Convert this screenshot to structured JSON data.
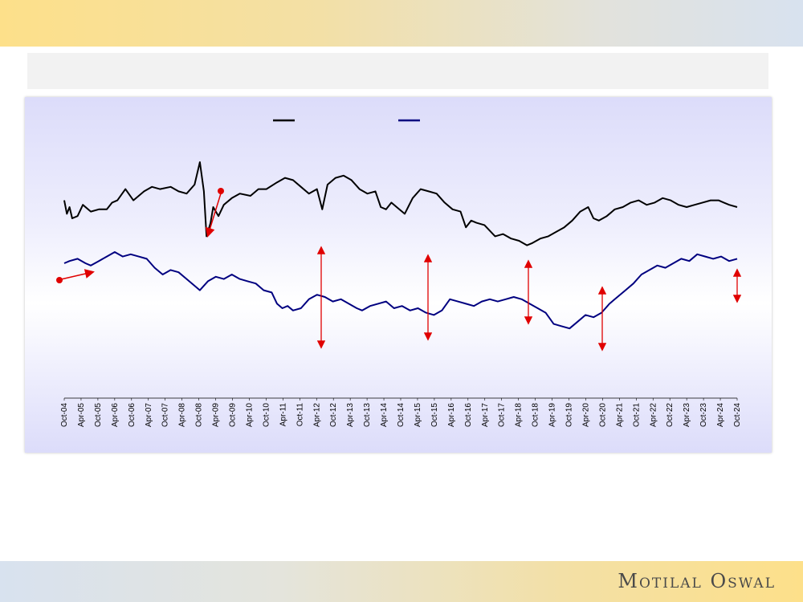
{
  "logo": {
    "text": "Motilal Oswal"
  },
  "colors": {
    "series_top": "#000000",
    "series_bottom": "#000080",
    "annotation": "#e00000"
  },
  "chart_data": {
    "type": "line",
    "x_ticks": [
      "Oct-04",
      "Apr-05",
      "Oct-05",
      "Apr-06",
      "Oct-06",
      "Apr-07",
      "Oct-07",
      "Apr-08",
      "Oct-08",
      "Apr-09",
      "Oct-09",
      "Apr-10",
      "Oct-10",
      "Apr-11",
      "Oct-11",
      "Apr-12",
      "Oct-12",
      "Apr-13",
      "Oct-13",
      "Apr-14",
      "Oct-14",
      "Apr-15",
      "Oct-15",
      "Apr-16",
      "Oct-16",
      "Apr-17",
      "Oct-17",
      "Apr-18",
      "Oct-18",
      "Apr-19",
      "Oct-19",
      "Apr-20",
      "Oct-20",
      "Apr-21",
      "Oct-21",
      "Apr-22",
      "Oct-22",
      "Apr-23",
      "Oct-23",
      "Apr-24",
      "Oct-24"
    ],
    "y_scale": {
      "min": 0,
      "max": 100,
      "note": "relative scale, axis not printed"
    },
    "series": [
      {
        "color": "#000000",
        "points": [
          [
            0,
            88
          ],
          [
            0.1,
            82
          ],
          [
            0.2,
            85
          ],
          [
            0.3,
            80
          ],
          [
            0.5,
            81
          ],
          [
            0.7,
            86
          ],
          [
            1.0,
            83
          ],
          [
            1.3,
            84
          ],
          [
            1.6,
            84
          ],
          [
            1.8,
            87
          ],
          [
            2.0,
            88
          ],
          [
            2.3,
            93
          ],
          [
            2.6,
            88
          ],
          [
            3.0,
            92
          ],
          [
            3.3,
            94
          ],
          [
            3.6,
            93
          ],
          [
            4.0,
            94
          ],
          [
            4.3,
            92
          ],
          [
            4.6,
            91
          ],
          [
            4.9,
            95
          ],
          [
            5.1,
            105
          ],
          [
            5.25,
            92
          ],
          [
            5.35,
            72
          ],
          [
            5.5,
            78
          ],
          [
            5.6,
            85
          ],
          [
            5.8,
            81
          ],
          [
            6.0,
            86
          ],
          [
            6.3,
            89
          ],
          [
            6.6,
            91
          ],
          [
            7.0,
            90
          ],
          [
            7.3,
            93
          ],
          [
            7.6,
            93
          ],
          [
            8.0,
            96
          ],
          [
            8.3,
            98
          ],
          [
            8.6,
            97
          ],
          [
            8.9,
            94
          ],
          [
            9.2,
            91
          ],
          [
            9.5,
            93
          ],
          [
            9.7,
            84
          ],
          [
            9.9,
            95
          ],
          [
            10.2,
            98
          ],
          [
            10.5,
            99
          ],
          [
            10.8,
            97
          ],
          [
            11.1,
            93
          ],
          [
            11.4,
            91
          ],
          [
            11.7,
            92
          ],
          [
            11.9,
            85
          ],
          [
            12.1,
            84
          ],
          [
            12.3,
            87
          ],
          [
            12.5,
            85
          ],
          [
            12.8,
            82
          ],
          [
            13.1,
            89
          ],
          [
            13.4,
            93
          ],
          [
            13.7,
            92
          ],
          [
            14.0,
            91
          ],
          [
            14.3,
            87
          ],
          [
            14.6,
            84
          ],
          [
            14.9,
            83
          ],
          [
            15.1,
            76
          ],
          [
            15.3,
            79
          ],
          [
            15.5,
            78
          ],
          [
            15.8,
            77
          ],
          [
            16.2,
            72
          ],
          [
            16.5,
            73
          ],
          [
            16.8,
            71
          ],
          [
            17.1,
            70
          ],
          [
            17.4,
            68
          ],
          [
            17.6,
            69
          ],
          [
            17.9,
            71
          ],
          [
            18.2,
            72
          ],
          [
            18.5,
            74
          ],
          [
            18.8,
            76
          ],
          [
            19.1,
            79
          ],
          [
            19.4,
            83
          ],
          [
            19.7,
            85
          ],
          [
            19.9,
            80
          ],
          [
            20.1,
            79
          ],
          [
            20.4,
            81
          ],
          [
            20.7,
            84
          ],
          [
            21.0,
            85
          ],
          [
            21.3,
            87
          ],
          [
            21.6,
            88
          ],
          [
            21.9,
            86
          ],
          [
            22.2,
            87
          ],
          [
            22.5,
            89
          ],
          [
            22.8,
            88
          ],
          [
            23.1,
            86
          ],
          [
            23.4,
            85
          ],
          [
            23.7,
            86
          ],
          [
            24.0,
            87
          ],
          [
            24.3,
            88
          ],
          [
            24.6,
            88
          ],
          [
            24.8,
            87
          ],
          [
            25.0,
            86
          ],
          [
            25.3,
            85
          ]
        ]
      },
      {
        "color": "#000080",
        "points": [
          [
            0,
            60
          ],
          [
            0.2,
            61
          ],
          [
            0.5,
            62
          ],
          [
            0.8,
            60
          ],
          [
            1.0,
            59
          ],
          [
            1.3,
            61
          ],
          [
            1.6,
            63
          ],
          [
            1.9,
            65
          ],
          [
            2.2,
            63
          ],
          [
            2.5,
            64
          ],
          [
            2.8,
            63
          ],
          [
            3.1,
            62
          ],
          [
            3.4,
            58
          ],
          [
            3.7,
            55
          ],
          [
            4.0,
            57
          ],
          [
            4.3,
            56
          ],
          [
            4.6,
            53
          ],
          [
            4.9,
            50
          ],
          [
            5.1,
            48
          ],
          [
            5.4,
            52
          ],
          [
            5.7,
            54
          ],
          [
            6.0,
            53
          ],
          [
            6.3,
            55
          ],
          [
            6.6,
            53
          ],
          [
            6.9,
            52
          ],
          [
            7.2,
            51
          ],
          [
            7.5,
            48
          ],
          [
            7.8,
            47
          ],
          [
            8.0,
            42
          ],
          [
            8.2,
            40
          ],
          [
            8.4,
            41
          ],
          [
            8.6,
            39
          ],
          [
            8.9,
            40
          ],
          [
            9.2,
            44
          ],
          [
            9.5,
            46
          ],
          [
            9.8,
            45
          ],
          [
            10.1,
            43
          ],
          [
            10.4,
            44
          ],
          [
            10.7,
            42
          ],
          [
            11.0,
            40
          ],
          [
            11.2,
            39
          ],
          [
            11.5,
            41
          ],
          [
            11.8,
            42
          ],
          [
            12.1,
            43
          ],
          [
            12.4,
            40
          ],
          [
            12.7,
            41
          ],
          [
            13.0,
            39
          ],
          [
            13.3,
            40
          ],
          [
            13.6,
            38
          ],
          [
            13.9,
            37
          ],
          [
            14.2,
            39
          ],
          [
            14.5,
            44
          ],
          [
            14.8,
            43
          ],
          [
            15.1,
            42
          ],
          [
            15.4,
            41
          ],
          [
            15.7,
            43
          ],
          [
            16.0,
            44
          ],
          [
            16.3,
            43
          ],
          [
            16.6,
            44
          ],
          [
            16.9,
            45
          ],
          [
            17.2,
            44
          ],
          [
            17.5,
            42
          ],
          [
            17.8,
            40
          ],
          [
            18.1,
            38
          ],
          [
            18.4,
            33
          ],
          [
            18.7,
            32
          ],
          [
            19.0,
            31
          ],
          [
            19.3,
            34
          ],
          [
            19.6,
            37
          ],
          [
            19.9,
            36
          ],
          [
            20.2,
            38
          ],
          [
            20.5,
            42
          ],
          [
            20.8,
            45
          ],
          [
            21.1,
            48
          ],
          [
            21.4,
            51
          ],
          [
            21.7,
            55
          ],
          [
            22.0,
            57
          ],
          [
            22.3,
            59
          ],
          [
            22.6,
            58
          ],
          [
            22.9,
            60
          ],
          [
            23.2,
            62
          ],
          [
            23.5,
            61
          ],
          [
            23.8,
            64
          ],
          [
            24.1,
            63
          ],
          [
            24.4,
            62
          ],
          [
            24.7,
            63
          ],
          [
            25.0,
            61
          ],
          [
            25.3,
            62
          ]
        ]
      }
    ]
  }
}
